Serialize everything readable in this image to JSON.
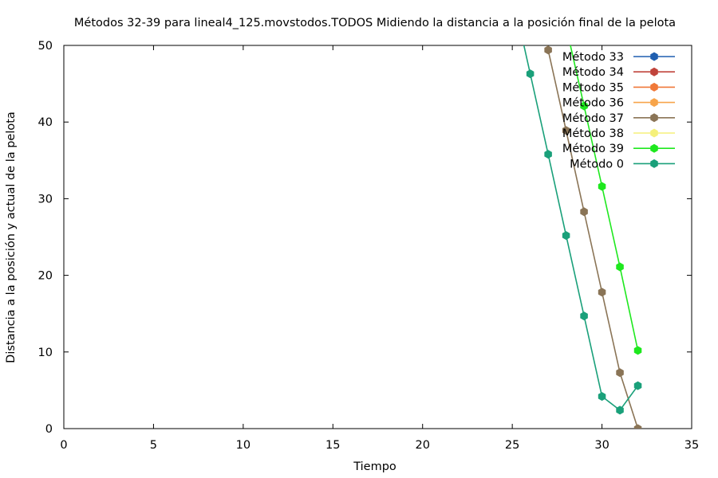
{
  "chart_data": {
    "type": "line",
    "title": "Métodos 32-39 para lineal4_125.movstodos.TODOS Midiendo la distancia a la posición final de la pelota",
    "xlabel": "Tiempo",
    "ylabel": "Distancia a la posición y actual de la pelota",
    "xlim": [
      0,
      35
    ],
    "ylim": [
      0,
      50
    ],
    "xticks": [
      0,
      5,
      10,
      15,
      20,
      25,
      30,
      35
    ],
    "yticks": [
      0,
      10,
      20,
      30,
      40,
      50
    ],
    "legend_position": "top-right",
    "grid": false,
    "series": [
      {
        "name": "Método 33",
        "color": "#1f5fb0",
        "x": [],
        "y": []
      },
      {
        "name": "Método 34",
        "color": "#c0433b",
        "x": [],
        "y": []
      },
      {
        "name": "Método 35",
        "color": "#f07838",
        "x": [],
        "y": []
      },
      {
        "name": "Método 36",
        "color": "#f7a44a",
        "x": [],
        "y": []
      },
      {
        "name": "Método 37",
        "color": "#8a7456",
        "x": [
          26,
          27,
          28,
          29,
          30,
          31,
          32
        ],
        "y": [
          60,
          49.4,
          38.9,
          28.3,
          17.8,
          7.3,
          0
        ]
      },
      {
        "name": "Método 38",
        "color": "#f5f07a",
        "x": [],
        "y": []
      },
      {
        "name": "Método 39",
        "color": "#1ee81e",
        "x": [
          28,
          29,
          30,
          31,
          32
        ],
        "y": [
          52.5,
          42.1,
          31.6,
          21.1,
          10.2
        ]
      },
      {
        "name": "Método 0",
        "color": "#1aa07a",
        "x": [
          25,
          26,
          27,
          28,
          29,
          30,
          31,
          32
        ],
        "y": [
          56.8,
          46.3,
          35.8,
          25.2,
          14.7,
          4.2,
          2.4,
          5.6
        ]
      }
    ]
  }
}
